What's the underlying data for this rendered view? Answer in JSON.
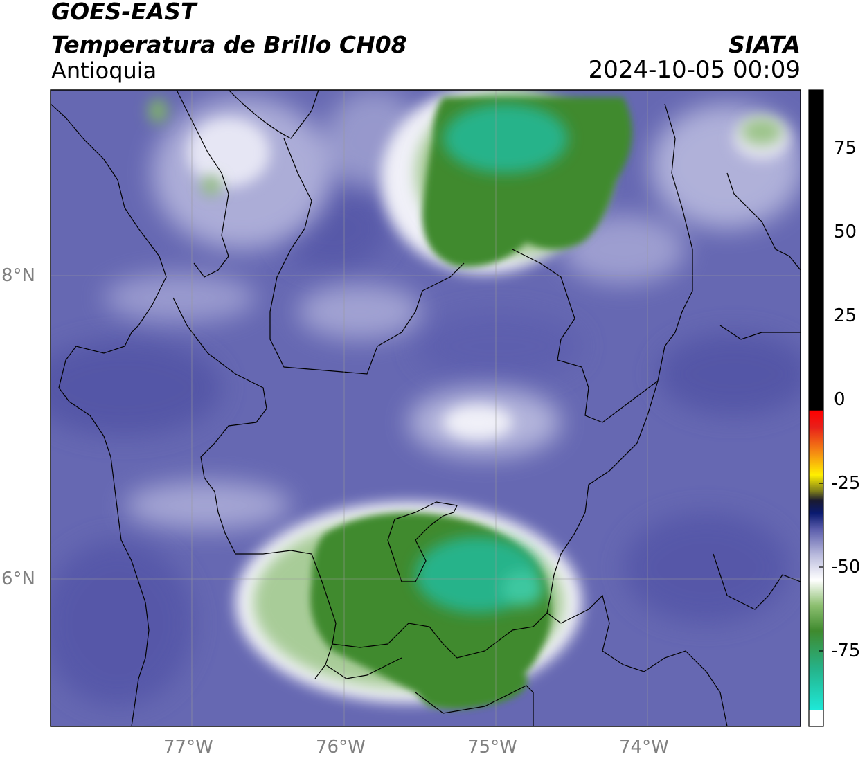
{
  "header": {
    "satellite": "GOES-EAST",
    "product": "Temperatura de Brillo CH08",
    "region": "Antioquia",
    "agency": "SIATA",
    "datetime": "2024-10-05 00:09"
  },
  "map": {
    "lon_ticks": [
      "77°W",
      "76°W",
      "75°W",
      "74°W"
    ],
    "lat_ticks": [
      "8°N",
      "6°N"
    ],
    "lon_range": [
      -77.95,
      -73.0
    ],
    "lat_range": [
      5.05,
      9.25
    ],
    "cold_cloud_areas": [
      "north-central cluster",
      "south-central cluster"
    ]
  },
  "colorbar": {
    "tick_labels": [
      "75",
      "50",
      "25",
      "0",
      "-25",
      "-50",
      "-75"
    ],
    "tick_values": [
      75,
      50,
      25,
      0,
      -25,
      -50,
      -75
    ],
    "range": [
      -95,
      92
    ],
    "colors": {
      "warm": "#000000",
      "red": "#e8201a",
      "orange": "#f58c12",
      "yellow": "#fff000",
      "navy": "#0a1a70",
      "blue_purple": "#5a5cab",
      "white": "#ffffff",
      "green": "#3f8a2e",
      "teal": "#25b38a",
      "cyan": "#1ee8d8"
    }
  }
}
